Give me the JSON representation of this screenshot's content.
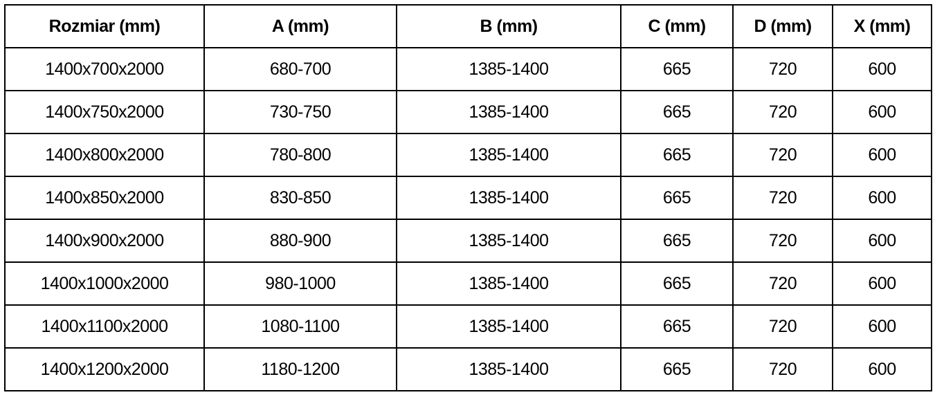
{
  "table": {
    "headers": [
      "Rozmiar (mm)",
      "A (mm)",
      "B (mm)",
      "C (mm)",
      "D (mm)",
      "X (mm)"
    ],
    "rows": [
      [
        "1400x700x2000",
        "680-700",
        "1385-1400",
        "665",
        "720",
        "600"
      ],
      [
        "1400x750x2000",
        "730-750",
        "1385-1400",
        "665",
        "720",
        "600"
      ],
      [
        "1400x800x2000",
        "780-800",
        "1385-1400",
        "665",
        "720",
        "600"
      ],
      [
        "1400x850x2000",
        "830-850",
        "1385-1400",
        "665",
        "720",
        "600"
      ],
      [
        "1400x900x2000",
        "880-900",
        "1385-1400",
        "665",
        "720",
        "600"
      ],
      [
        "1400x1000x2000",
        "980-1000",
        "1385-1400",
        "665",
        "720",
        "600"
      ],
      [
        "1400x1100x2000",
        "1080-1100",
        "1385-1400",
        "665",
        "720",
        "600"
      ],
      [
        "1400x1200x2000",
        "1180-1200",
        "1385-1400",
        "665",
        "720",
        "600"
      ]
    ]
  }
}
